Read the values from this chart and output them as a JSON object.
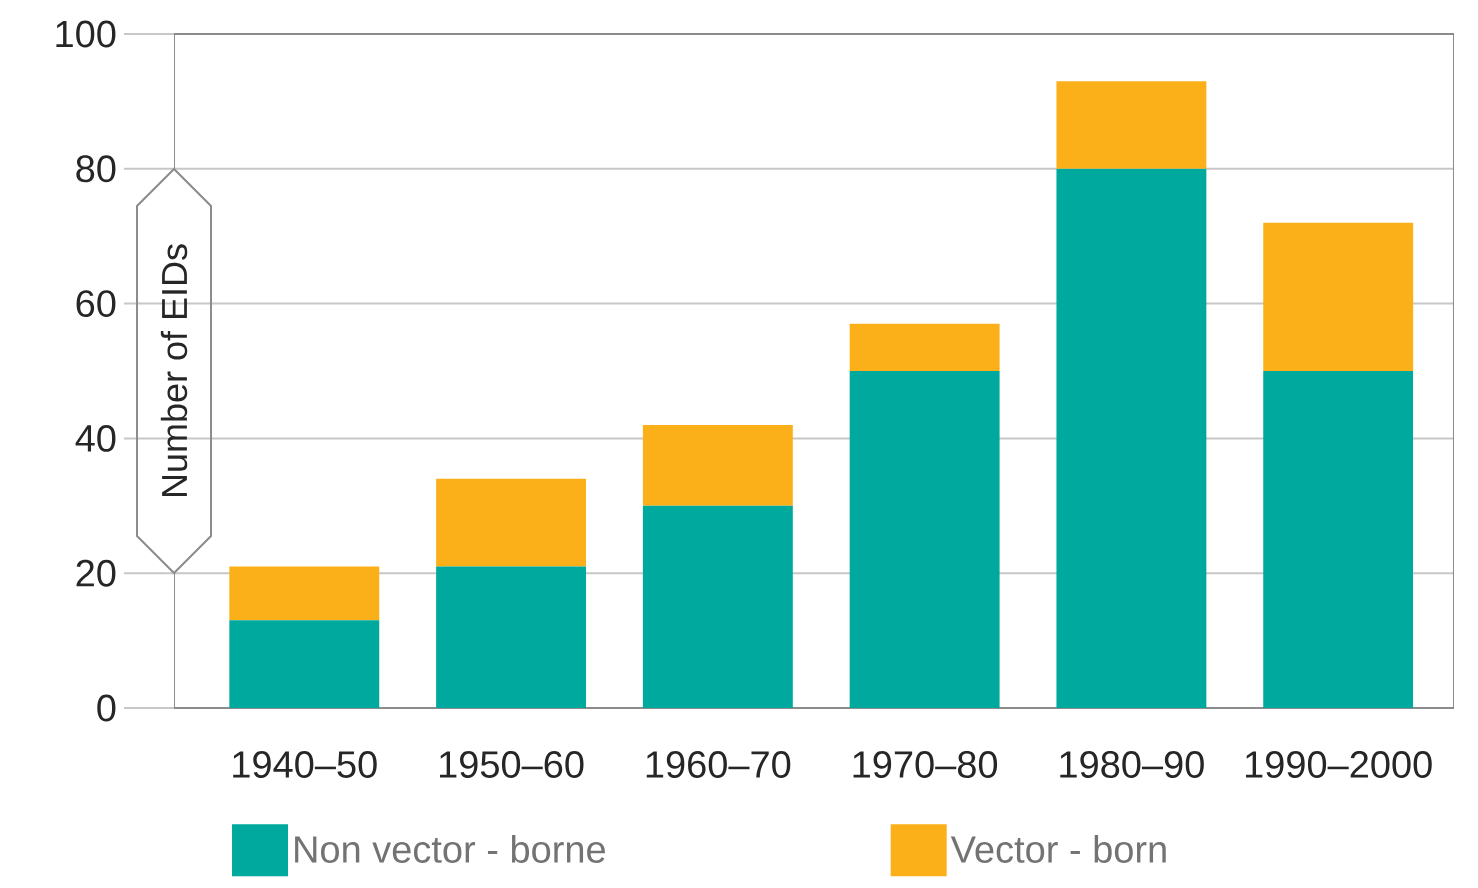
{
  "chart_data": {
    "type": "bar",
    "stacked": true,
    "ylabel": "Number of EIDs",
    "categories": [
      "1940–50",
      "1950–60",
      "1960–70",
      "1970–80",
      "1980–90",
      "1990–2000"
    ],
    "series": [
      {
        "name": "Non vector - borne",
        "color": "#00a99d",
        "values": [
          13,
          21,
          30,
          50,
          80,
          50
        ]
      },
      {
        "name": "Vector - born",
        "color": "#fbb01a",
        "values": [
          8,
          13,
          12,
          7,
          13,
          22
        ]
      }
    ],
    "ylim": [
      0,
      100
    ],
    "yticks": [
      0,
      20,
      40,
      60,
      80,
      100
    ],
    "grid": "y",
    "legend": "bottom"
  }
}
